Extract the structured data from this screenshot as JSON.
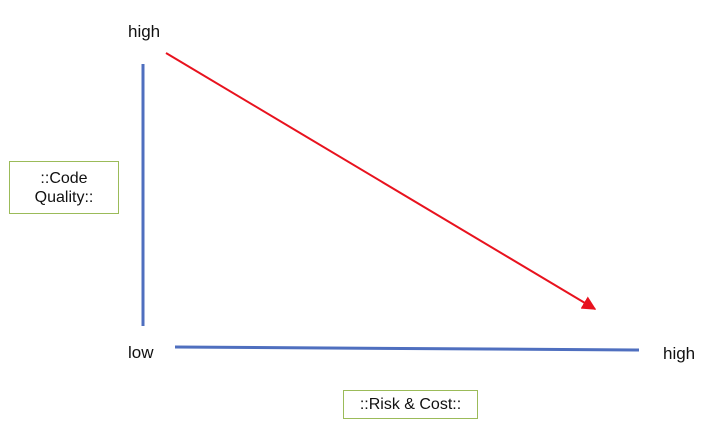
{
  "diagram": {
    "y_axis": {
      "high_label": "high",
      "title_line1": "::Code",
      "title_line2": "Quality::"
    },
    "x_axis": {
      "low_label": "low",
      "high_label": "high",
      "title": "::Risk & Cost::"
    },
    "colors": {
      "axis": "#4f6fbf",
      "trend_arrow": "#e8121e",
      "label_box_border": "#9bbb59"
    }
  }
}
